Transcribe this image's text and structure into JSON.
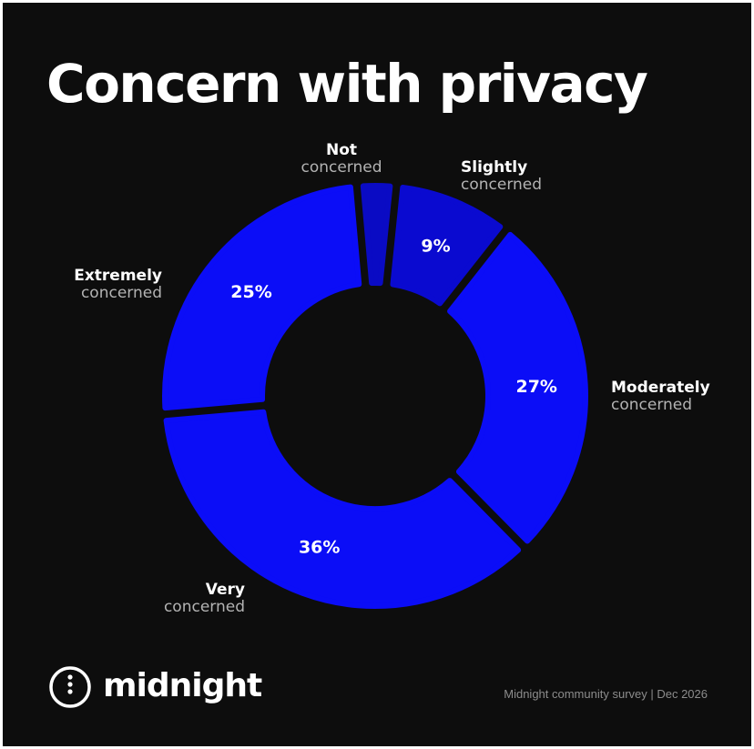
{
  "title": "Concern with privacy",
  "colors": {
    "background": "#0d0d0d",
    "primary_blue": "#0b0df7",
    "slightly_blue": "#0a0ad0",
    "not_blue": "#0a0bc4"
  },
  "chart_data": {
    "type": "pie",
    "title": "Concern with privacy",
    "categories": [
      "Not concerned",
      "Slightly concerned",
      "Moderately concerned",
      "Very concerned",
      "Extremely concerned"
    ],
    "values": [
      3,
      9,
      27,
      36,
      25
    ],
    "unit": "%",
    "slices": [
      {
        "line1": "Not",
        "line2": "concerned",
        "value": 3,
        "value_label": "",
        "color": "#0a0bc4"
      },
      {
        "line1": "Slightly",
        "line2": "concerned",
        "value": 9,
        "value_label": "9%",
        "color": "#0a0ad0"
      },
      {
        "line1": "Moderately",
        "line2": "concerned",
        "value": 27,
        "value_label": "27%",
        "color": "#0b0df7"
      },
      {
        "line1": "Very",
        "line2": "concerned",
        "value": 36,
        "value_label": "36%",
        "color": "#0b0df7"
      },
      {
        "line1": "Extremely",
        "line2": "concerned",
        "value": 25,
        "value_label": "25%",
        "color": "#0b0df7"
      }
    ]
  },
  "brand": {
    "name": "midnight",
    "icon": "midnight-logo-icon"
  },
  "footer": "Midnight community survey | Dec 2026"
}
